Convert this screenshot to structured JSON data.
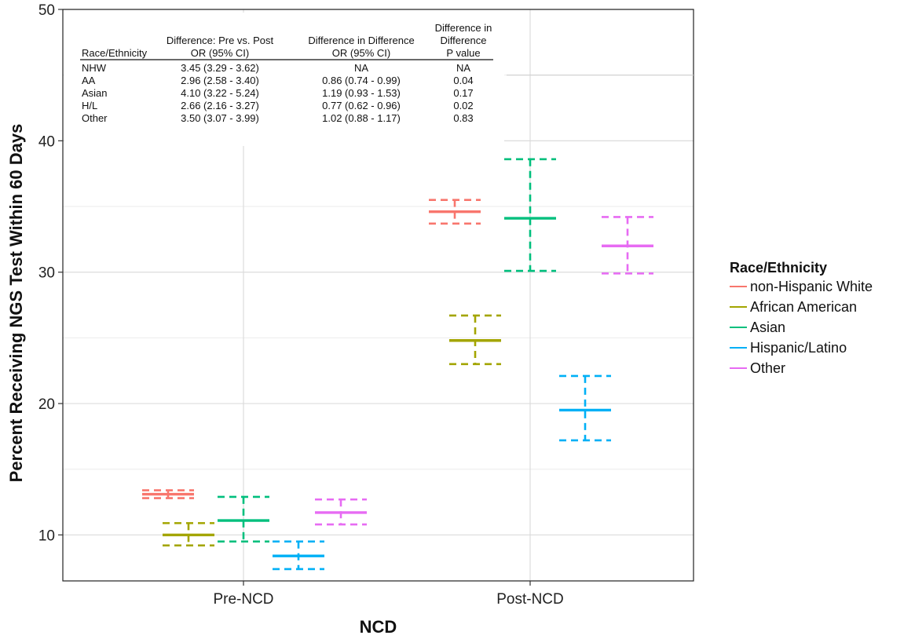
{
  "chart_data": {
    "type": "errorbar",
    "xlabel": "NCD",
    "ylabel": "Percent Receiving NGS Test Within 60 Days",
    "categories": [
      "Pre-NCD",
      "Post-NCD"
    ],
    "ylim": [
      6.5,
      50
    ],
    "yticks": [
      10,
      20,
      30,
      40,
      50
    ],
    "grid": true,
    "legend": {
      "title": "Race/Ethnicity",
      "position": "right"
    },
    "series": [
      {
        "name": "non-Hispanic White",
        "color": "#F8766D",
        "estimate": [
          13.1,
          34.6
        ],
        "lower": [
          12.8,
          33.7
        ],
        "upper": [
          13.4,
          35.5
        ]
      },
      {
        "name": "African American",
        "color": "#A3A500",
        "estimate": [
          10.0,
          24.8
        ],
        "lower": [
          9.2,
          23.0
        ],
        "upper": [
          10.9,
          26.7
        ]
      },
      {
        "name": "Asian",
        "color": "#00BF7D",
        "estimate": [
          11.1,
          34.1
        ],
        "lower": [
          9.5,
          30.1
        ],
        "upper": [
          12.9,
          38.6
        ]
      },
      {
        "name": "Hispanic/Latino",
        "color": "#00B0F6",
        "estimate": [
          8.4,
          19.5
        ],
        "lower": [
          7.4,
          17.2
        ],
        "upper": [
          9.5,
          22.1
        ]
      },
      {
        "name": "Other",
        "color": "#E76BF3",
        "estimate": [
          11.7,
          32.0
        ],
        "lower": [
          10.8,
          29.9
        ],
        "upper": [
          12.7,
          34.2
        ]
      }
    ],
    "table": {
      "headers": {
        "col1": [
          "Race/Ethnicity"
        ],
        "col2": [
          "Difference: Pre vs. Post",
          "OR (95% CI)"
        ],
        "col3": [
          "Difference in Difference",
          "OR (95% CI)"
        ],
        "col4": [
          "Difference in",
          "Difference",
          "P value"
        ]
      },
      "rows": [
        [
          "NHW",
          "3.45 (3.29 - 3.62)",
          "NA",
          "NA"
        ],
        [
          "AA",
          "2.96 (2.58 - 3.40)",
          "0.86 (0.74 - 0.99)",
          "0.04"
        ],
        [
          "Asian",
          "4.10 (3.22 - 5.24)",
          "1.19 (0.93 - 1.53)",
          "0.17"
        ],
        [
          "H/L",
          "2.66 (2.16 - 3.27)",
          "0.77 (0.62 - 0.96)",
          "0.02"
        ],
        [
          "Other",
          "3.50 (3.07 - 3.99)",
          "1.02 (0.88 - 1.17)",
          "0.83"
        ]
      ]
    }
  }
}
